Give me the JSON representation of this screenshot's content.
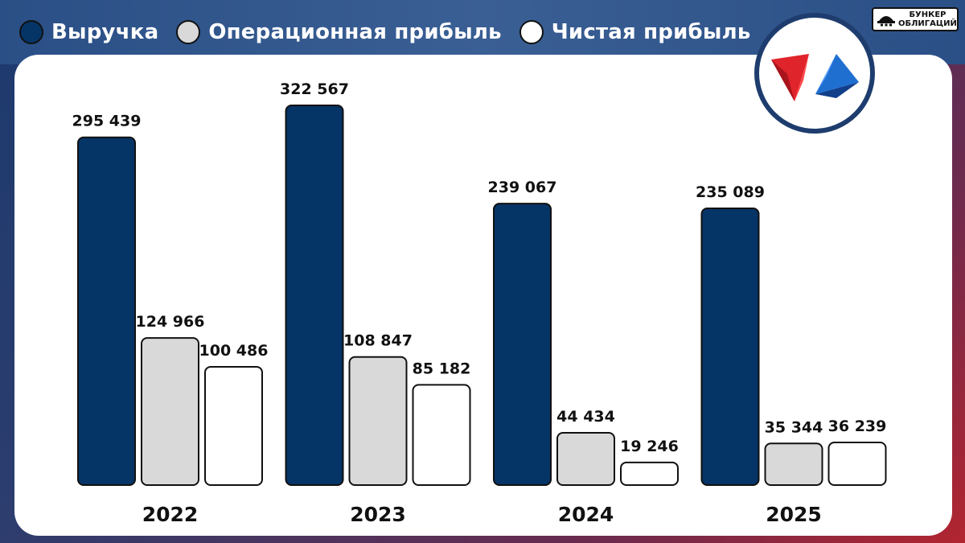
{
  "legend": [
    {
      "label": "Выручка",
      "color": "#053466"
    },
    {
      "label": "Операционная прибыль",
      "color": "#d9d9d9"
    },
    {
      "label": "Чистая прибыль",
      "color": "#ffffff"
    }
  ],
  "brand": {
    "line1": "БУНКЕР",
    "line2": "ОБЛИГАЦИЙ"
  },
  "logo": {
    "icon": "red-blue-triangles-logo-icon"
  },
  "chart_data": {
    "type": "bar",
    "categories": [
      "2022",
      "2023",
      "2024",
      "2025"
    ],
    "series": [
      {
        "name": "Выручка",
        "color": "#053466",
        "values": [
          295439,
          322567,
          239067,
          235089
        ],
        "labels": [
          "295 439",
          "322 567",
          "239 067",
          "235 089"
        ]
      },
      {
        "name": "Операционная прибыль",
        "color": "#d9d9d9",
        "values": [
          124966,
          108847,
          44434,
          35344
        ],
        "labels": [
          "124 966",
          "108 847",
          "44 434",
          "35 344"
        ]
      },
      {
        "name": "Чистая прибыль",
        "color": "#ffffff",
        "values": [
          100486,
          85182,
          19246,
          36239
        ],
        "labels": [
          "100 486",
          "85 182",
          "19 246",
          "36 239"
        ]
      }
    ],
    "ylim": [
      0,
      322567
    ],
    "grid": false,
    "legend_position": "top-left"
  }
}
